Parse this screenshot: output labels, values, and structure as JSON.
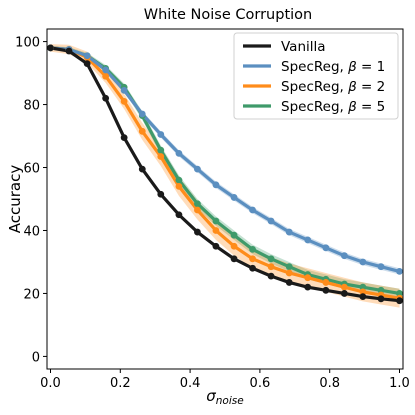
{
  "chart_data": {
    "type": "line",
    "title": "White Noise Corruption",
    "xlabel_main": "σ",
    "xlabel_sub": "noise",
    "ylabel": "Accuracy",
    "xlim": [
      -0.01,
      1.01
    ],
    "ylim": [
      -4,
      104
    ],
    "xticks": [
      0.0,
      0.2,
      0.4,
      0.6,
      0.8,
      1.0
    ],
    "xtick_labels": [
      "0.0",
      "0.2",
      "0.4",
      "0.6",
      "0.8",
      "1.0"
    ],
    "yticks": [
      0,
      20,
      40,
      60,
      80,
      100
    ],
    "ytick_labels": [
      "0",
      "20",
      "40",
      "60",
      "80",
      "100"
    ],
    "grid": false,
    "legend_position": "top-right",
    "x": [
      0.0,
      0.053,
      0.105,
      0.158,
      0.211,
      0.263,
      0.316,
      0.368,
      0.421,
      0.474,
      0.526,
      0.579,
      0.632,
      0.684,
      0.737,
      0.789,
      0.842,
      0.895,
      0.947,
      1.0
    ],
    "series": [
      {
        "name": "Vanilla",
        "legend_label": "Vanilla",
        "color": "#1a1a1a",
        "values": [
          98.0,
          97.0,
          93.0,
          82.0,
          69.5,
          59.5,
          51.5,
          45.0,
          39.5,
          35.0,
          31.0,
          28.0,
          25.5,
          23.5,
          22.0,
          21.0,
          20.0,
          19.0,
          18.3,
          17.7
        ],
        "band": null
      },
      {
        "name": "SpecReg, β = 1",
        "legend_label_prefix": "SpecReg, ",
        "legend_label_symbol": "β",
        "legend_label_suffix": " = 1",
        "color": "#5b8fc0",
        "values": [
          98.0,
          97.5,
          95.5,
          91.0,
          84.5,
          77.0,
          70.5,
          64.5,
          59.5,
          54.5,
          50.5,
          46.5,
          43.0,
          39.5,
          37.0,
          34.5,
          32.0,
          30.0,
          28.5,
          27.0
        ],
        "band": 1.0
      },
      {
        "name": "SpecReg, β = 2",
        "legend_label_prefix": "SpecReg, ",
        "legend_label_symbol": "β",
        "legend_label_suffix": " = 2",
        "color": "#ff8c1a",
        "values": [
          98.0,
          97.5,
          95.0,
          89.0,
          81.0,
          71.5,
          63.5,
          54.0,
          46.5,
          40.0,
          35.0,
          31.0,
          28.5,
          26.5,
          25.0,
          23.5,
          22.0,
          20.5,
          19.5,
          18.5
        ],
        "band": 3.0
      },
      {
        "name": "SpecReg, β = 5",
        "legend_label_prefix": "SpecReg, ",
        "legend_label_symbol": "β",
        "legend_label_suffix": " = 5",
        "color": "#3f9a6a",
        "values": [
          98.0,
          97.5,
          95.5,
          91.5,
          85.5,
          76.5,
          65.5,
          56.0,
          48.5,
          43.0,
          38.5,
          34.0,
          31.0,
          28.5,
          26.0,
          24.5,
          23.0,
          22.0,
          21.0,
          20.0
        ],
        "band": 1.5
      }
    ]
  }
}
